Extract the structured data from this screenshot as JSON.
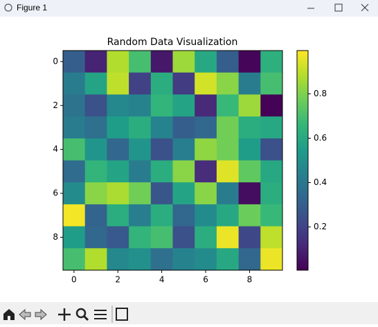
{
  "window": {
    "title": "Figure 1"
  },
  "chart_data": {
    "type": "heatmap",
    "title": "Random Data Visualization",
    "colormap": "viridis",
    "values": [
      [
        0.3,
        0.1,
        0.88,
        0.7,
        0.07,
        0.85,
        0.6,
        0.3,
        0.02,
        0.63
      ],
      [
        0.42,
        0.58,
        0.9,
        0.2,
        0.62,
        0.18,
        0.93,
        0.82,
        0.42,
        0.7
      ],
      [
        0.38,
        0.25,
        0.47,
        0.45,
        0.65,
        0.58,
        0.12,
        0.67,
        0.85,
        0.01
      ],
      [
        0.42,
        0.37,
        0.55,
        0.62,
        0.45,
        0.3,
        0.33,
        0.78,
        0.62,
        0.6
      ],
      [
        0.7,
        0.52,
        0.33,
        0.52,
        0.25,
        0.43,
        0.83,
        0.78,
        0.55,
        0.25
      ],
      [
        0.35,
        0.65,
        0.58,
        0.42,
        0.62,
        0.82,
        0.13,
        0.95,
        0.75,
        0.6
      ],
      [
        0.48,
        0.82,
        0.87,
        0.78,
        0.27,
        0.58,
        0.82,
        0.42,
        0.04,
        0.62
      ],
      [
        0.98,
        0.32,
        0.62,
        0.43,
        0.62,
        0.33,
        0.48,
        0.6,
        0.77,
        0.67
      ],
      [
        0.55,
        0.33,
        0.28,
        0.65,
        0.7,
        0.25,
        0.62,
        0.97,
        0.22,
        0.9
      ],
      [
        0.7,
        0.88,
        0.47,
        0.5,
        0.37,
        0.45,
        0.48,
        0.6,
        0.33,
        0.97
      ]
    ],
    "xlim": [
      -0.5,
      9.5
    ],
    "xticks": [
      0,
      2,
      4,
      6,
      8
    ],
    "ylim": [
      9.5,
      -0.5
    ],
    "yticks": [
      0,
      2,
      4,
      6,
      8
    ],
    "clim": [
      0.005,
      0.995
    ],
    "cticks": [
      0.2,
      0.4,
      0.6,
      0.8
    ]
  }
}
